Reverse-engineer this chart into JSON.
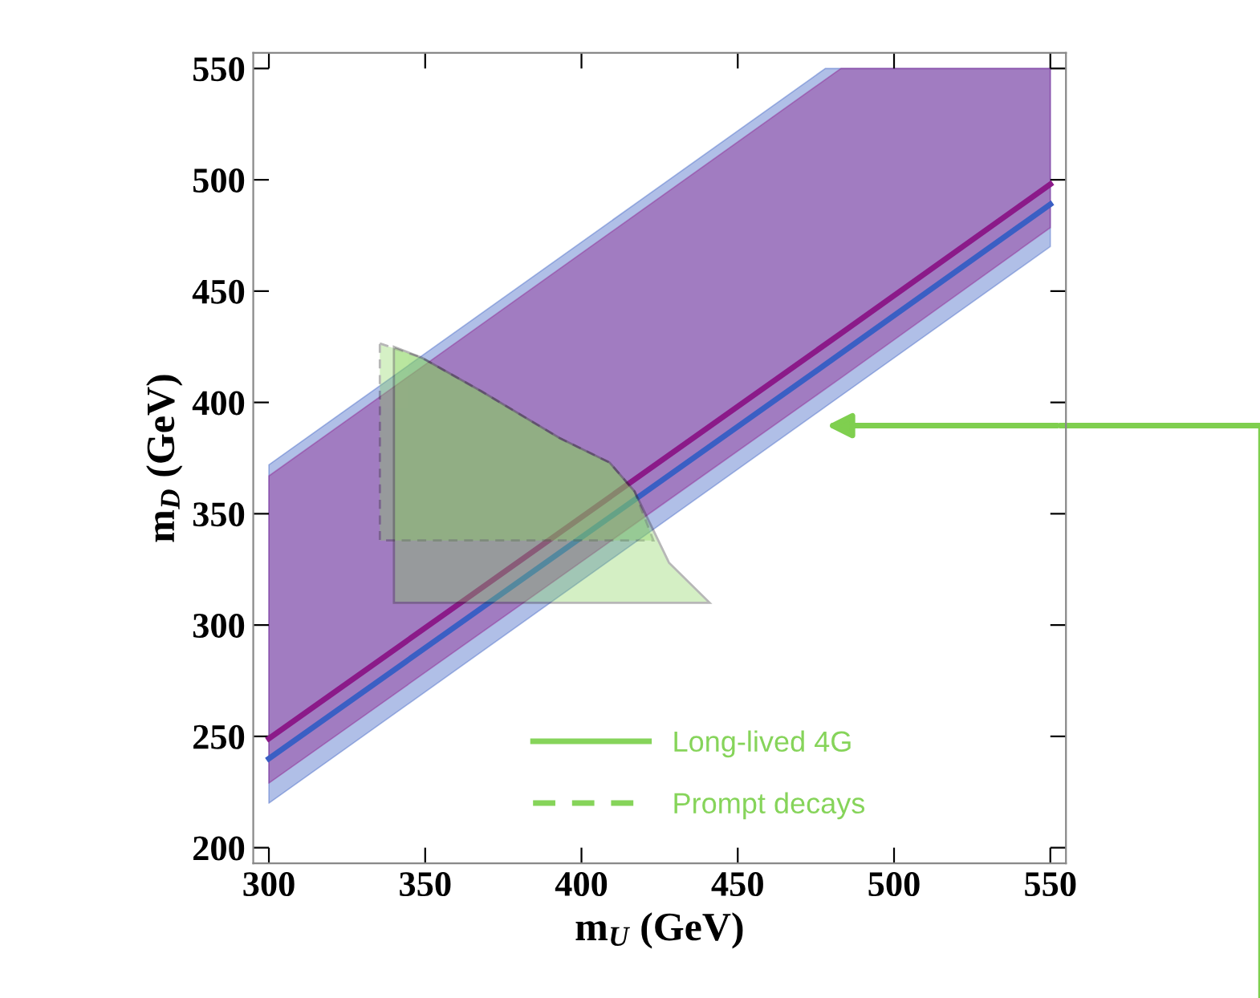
{
  "chart_data": {
    "type": "line",
    "xlabel": "m$_{U}$ (GeV)",
    "ylabel": "m$_{D}$ (GeV)",
    "xlim": [
      295,
      555
    ],
    "ylim": [
      193,
      557
    ],
    "xticks": [
      300,
      350,
      400,
      450,
      500,
      550
    ],
    "yticks": [
      200,
      250,
      300,
      350,
      400,
      450,
      500,
      550
    ],
    "grid": false,
    "legend": "bottom right",
    "marker": "none",
    "series": [
      {
        "color": "#3a5fc4",
        "x": [
          300,
          478,
          550
        ],
        "values": [
          240,
          417,
          489
        ],
        "lower": [
          220,
          398,
          470
        ],
        "upper": [
          372,
          550,
          550
        ]
      },
      {
        "color": "#8b1a89",
        "x": [
          300,
          483,
          550
        ],
        "values": [
          249,
          431,
          498
        ],
        "lower": [
          229,
          411,
          478.5
        ],
        "upper": [
          367,
          550,
          550
        ]
      },
      {
        "type": "area",
        "name": "Prompt decays",
        "color": "#86d45a",
        "line_style": "dashed",
        "x": [
          335.5,
          349,
          368,
          393,
          409,
          417,
          423,
          335.5
        ],
        "values": [
          426.5,
          420,
          405,
          384,
          373,
          360,
          338,
          338
        ]
      },
      {
        "type": "area",
        "name": "Long-lived 4G",
        "color": "#86d45a",
        "line_style": "solid",
        "x": [
          340,
          349,
          368,
          393,
          409,
          417,
          428,
          441,
          340
        ],
        "values": [
          425,
          420,
          405,
          384,
          373,
          360,
          328,
          310,
          310
        ]
      }
    ]
  }
}
